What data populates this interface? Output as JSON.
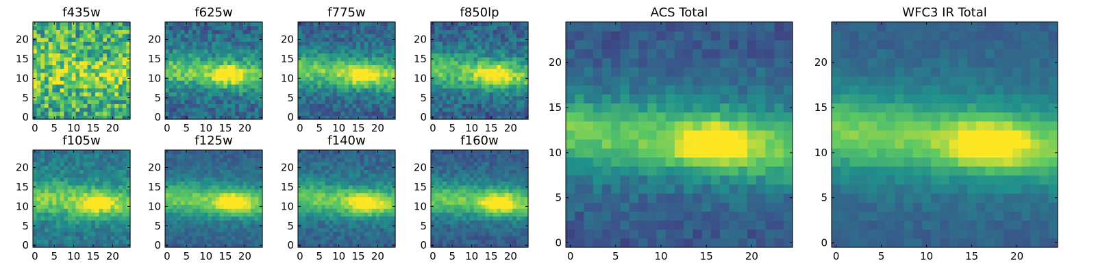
{
  "colormap": "viridis",
  "colormap_stops": [
    "#440154",
    "#3b528b",
    "#21918c",
    "#5ec962",
    "#fde725"
  ],
  "chart_data": [
    {
      "type": "heatmap",
      "title": "f435w",
      "grid_size": 25,
      "xlim": [
        0,
        24
      ],
      "ylim": [
        0,
        24
      ],
      "xticks": [
        0,
        5,
        10,
        15,
        20
      ],
      "yticks": [
        0,
        5,
        10,
        15,
        20
      ],
      "grid": false,
      "center": [
        16,
        11
      ],
      "peak_intensity": 0.08,
      "noise": 0.55,
      "background": 0.6,
      "seed": 11
    },
    {
      "type": "heatmap",
      "title": "f625w",
      "grid_size": 25,
      "xlim": [
        0,
        24
      ],
      "ylim": [
        0,
        24
      ],
      "xticks": [
        0,
        5,
        10,
        15,
        20
      ],
      "yticks": [
        0,
        5,
        10,
        15,
        20
      ],
      "grid": false,
      "center": [
        16,
        11
      ],
      "peak_intensity": 0.55,
      "noise": 0.28,
      "background": 0.32,
      "seed": 22
    },
    {
      "type": "heatmap",
      "title": "f775w",
      "grid_size": 25,
      "xlim": [
        0,
        24
      ],
      "ylim": [
        0,
        24
      ],
      "xticks": [
        0,
        5,
        10,
        15,
        20
      ],
      "yticks": [
        0,
        5,
        10,
        15,
        20
      ],
      "grid": false,
      "center": [
        16,
        11
      ],
      "peak_intensity": 0.6,
      "noise": 0.25,
      "background": 0.3,
      "seed": 33
    },
    {
      "type": "heatmap",
      "title": "f850lp",
      "grid_size": 25,
      "xlim": [
        0,
        24
      ],
      "ylim": [
        0,
        24
      ],
      "xticks": [
        0,
        5,
        10,
        15,
        20
      ],
      "yticks": [
        0,
        5,
        10,
        15,
        20
      ],
      "grid": false,
      "center": [
        16,
        11
      ],
      "peak_intensity": 0.58,
      "noise": 0.27,
      "background": 0.3,
      "seed": 44
    },
    {
      "type": "heatmap",
      "title": "f105w",
      "grid_size": 25,
      "xlim": [
        0,
        24
      ],
      "ylim": [
        0,
        24
      ],
      "xticks": [
        0,
        5,
        10,
        15,
        20
      ],
      "yticks": [
        0,
        5,
        10,
        15,
        20
      ],
      "grid": false,
      "center": [
        16,
        11
      ],
      "peak_intensity": 0.5,
      "noise": 0.22,
      "background": 0.38,
      "seed": 55
    },
    {
      "type": "heatmap",
      "title": "f125w",
      "grid_size": 25,
      "xlim": [
        0,
        24
      ],
      "ylim": [
        0,
        24
      ],
      "xticks": [
        0,
        5,
        10,
        15,
        20
      ],
      "yticks": [
        0,
        5,
        10,
        15,
        20
      ],
      "grid": false,
      "center": [
        17,
        11
      ],
      "peak_intensity": 0.6,
      "noise": 0.15,
      "background": 0.3,
      "seed": 66
    },
    {
      "type": "heatmap",
      "title": "f140w",
      "grid_size": 25,
      "xlim": [
        0,
        24
      ],
      "ylim": [
        0,
        24
      ],
      "xticks": [
        0,
        5,
        10,
        15,
        20
      ],
      "yticks": [
        0,
        5,
        10,
        15,
        20
      ],
      "grid": false,
      "center": [
        17,
        11
      ],
      "peak_intensity": 0.58,
      "noise": 0.18,
      "background": 0.3,
      "seed": 77
    },
    {
      "type": "heatmap",
      "title": "f160w",
      "grid_size": 25,
      "xlim": [
        0,
        24
      ],
      "ylim": [
        0,
        24
      ],
      "xticks": [
        0,
        5,
        10,
        15,
        20
      ],
      "yticks": [
        0,
        5,
        10,
        15,
        20
      ],
      "grid": false,
      "center": [
        17,
        11
      ],
      "peak_intensity": 0.6,
      "noise": 0.17,
      "background": 0.28,
      "seed": 88
    },
    {
      "type": "heatmap",
      "title": "ACS Total",
      "grid_size": 25,
      "xlim": [
        0,
        24
      ],
      "ylim": [
        0,
        24
      ],
      "xticks": [
        0,
        5,
        10,
        15,
        20
      ],
      "yticks": [
        0,
        5,
        10,
        15,
        20
      ],
      "grid": false,
      "center": [
        16,
        11
      ],
      "peak_intensity": 0.65,
      "noise": 0.16,
      "background": 0.26,
      "seed": 99
    },
    {
      "type": "heatmap",
      "title": "WFC3 IR Total",
      "grid_size": 25,
      "xlim": [
        0,
        24
      ],
      "ylim": [
        0,
        24
      ],
      "xticks": [
        0,
        5,
        10,
        15,
        20
      ],
      "yticks": [
        0,
        5,
        10,
        15,
        20
      ],
      "grid": false,
      "center": [
        17,
        11
      ],
      "peak_intensity": 0.62,
      "noise": 0.1,
      "background": 0.3,
      "seed": 111
    }
  ]
}
